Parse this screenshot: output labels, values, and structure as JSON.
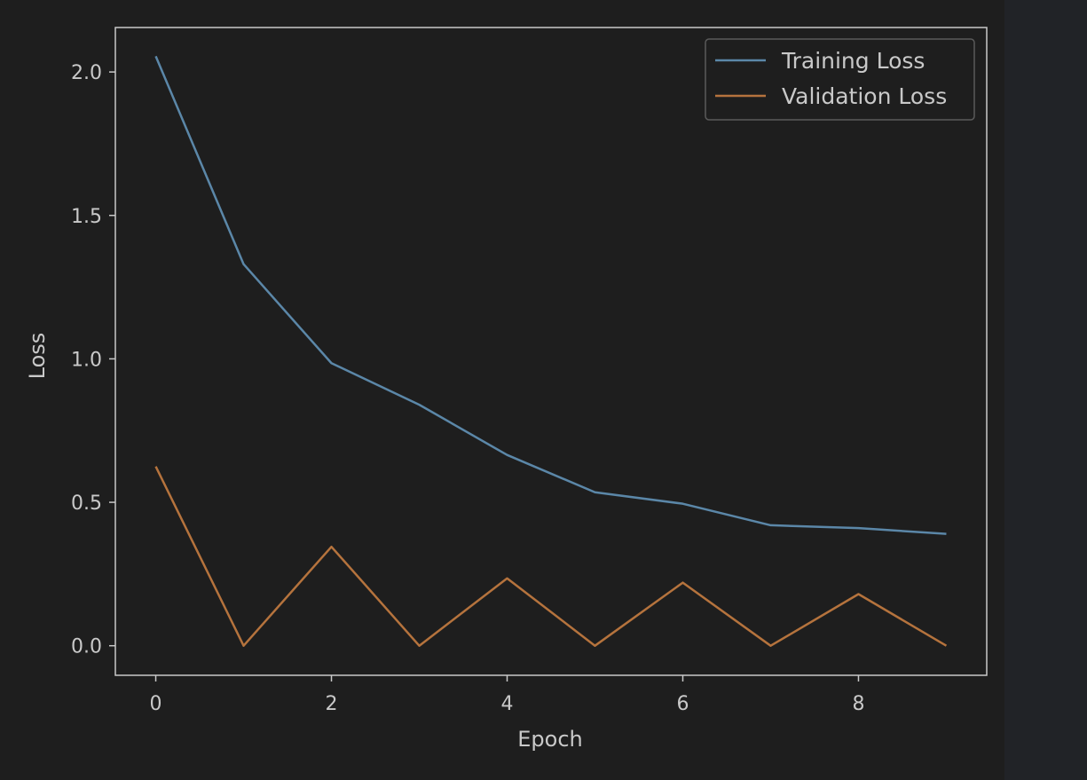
{
  "chart_data": {
    "type": "line",
    "title": "",
    "xlabel": "Epoch",
    "ylabel": "Loss",
    "xlim": [
      -0.46,
      9.46
    ],
    "ylim": [
      -0.103,
      2.155
    ],
    "xticks": [
      0,
      2,
      4,
      6,
      8
    ],
    "yticks": [
      0.0,
      0.5,
      1.0,
      1.5,
      2.0
    ],
    "ytick_labels": [
      "0.0",
      "0.5",
      "1.0",
      "1.5",
      "2.0"
    ],
    "xtick_labels": [
      "0",
      "2",
      "4",
      "6",
      "8"
    ],
    "grid": false,
    "legend_position": "top-right",
    "x": [
      0,
      1,
      2,
      3,
      4,
      5,
      6,
      7,
      8,
      9
    ],
    "series": [
      {
        "name": "Training Loss",
        "color": "#5b87a8",
        "values": [
          2.055,
          1.33,
          0.985,
          0.84,
          0.665,
          0.535,
          0.495,
          0.42,
          0.41,
          0.39
        ]
      },
      {
        "name": "Validation Loss",
        "color": "#b5733d",
        "values": [
          0.625,
          0.0,
          0.345,
          0.0,
          0.235,
          0.0,
          0.22,
          0.0,
          0.18,
          0.0
        ]
      }
    ],
    "colors": {
      "background": "#1e1e1e",
      "text": "#c9c9c9",
      "spine": "#c9c9c9"
    }
  }
}
